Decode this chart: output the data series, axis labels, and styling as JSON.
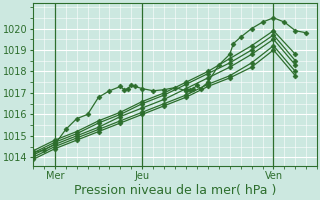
{
  "background_color": "#cce8e0",
  "plot_bg_color": "#cce8e0",
  "grid_color": "#ffffff",
  "grid_minor_color": "#ddf0ea",
  "line_color": "#2d6e2d",
  "ylabel_ticks": [
    1014,
    1015,
    1016,
    1017,
    1018,
    1019,
    1020
  ],
  "ylim": [
    1013.6,
    1021.2
  ],
  "xlim": [
    0,
    78
  ],
  "xlabel": "Pression niveau de la mer( hPa )",
  "x_ticks_pos": [
    6,
    30,
    66
  ],
  "x_tick_labels": [
    "Mer",
    "Jeu",
    "Ven"
  ],
  "vline_positions": [
    6,
    30,
    66
  ],
  "series": [
    {
      "xy": [
        0,
        1014.2,
        3,
        1014.35,
        6,
        1014.6,
        9,
        1015.3,
        12,
        1015.8,
        15,
        1016.0,
        18,
        1016.8,
        21,
        1017.1,
        24,
        1017.3,
        25,
        1017.15,
        26,
        1017.2,
        27,
        1017.35,
        28,
        1017.3,
        30,
        1017.2,
        33,
        1017.1,
        36,
        1017.15,
        39,
        1017.25,
        42,
        1017.1,
        43,
        1017.15,
        44,
        1017.2,
        45,
        1017.35,
        46,
        1017.2,
        48,
        1017.5,
        51,
        1018.3,
        54,
        1018.8,
        55,
        1019.3,
        57,
        1019.6,
        60,
        1020.0,
        63,
        1020.3,
        66,
        1020.5,
        69,
        1020.3,
        72,
        1019.9,
        75,
        1019.8
      ]
    },
    {
      "xy": [
        0,
        1014.3,
        6,
        1014.8,
        12,
        1015.2,
        18,
        1015.7,
        24,
        1016.1,
        30,
        1016.6,
        36,
        1017.0,
        42,
        1017.5,
        48,
        1018.0,
        54,
        1018.6,
        60,
        1019.2,
        66,
        1019.9,
        72,
        1018.8
      ]
    },
    {
      "xy": [
        0,
        1014.2,
        6,
        1014.7,
        12,
        1015.1,
        18,
        1015.6,
        24,
        1016.0,
        30,
        1016.5,
        36,
        1016.9,
        42,
        1017.4,
        48,
        1017.9,
        54,
        1018.4,
        60,
        1019.0,
        66,
        1019.7,
        72,
        1018.5
      ]
    },
    {
      "xy": [
        0,
        1014.1,
        6,
        1014.6,
        12,
        1015.0,
        18,
        1015.4,
        24,
        1015.9,
        30,
        1016.3,
        36,
        1016.7,
        42,
        1017.2,
        48,
        1017.7,
        54,
        1018.2,
        60,
        1018.8,
        66,
        1019.5,
        72,
        1018.3
      ]
    },
    {
      "xy": [
        0,
        1014.0,
        6,
        1014.5,
        12,
        1014.9,
        18,
        1015.3,
        24,
        1015.7,
        30,
        1016.1,
        36,
        1016.5,
        42,
        1016.9,
        48,
        1017.4,
        54,
        1017.8,
        60,
        1018.4,
        66,
        1019.2,
        72,
        1018.0
      ]
    },
    {
      "xy": [
        0,
        1013.9,
        6,
        1014.4,
        12,
        1014.8,
        18,
        1015.2,
        24,
        1015.6,
        30,
        1016.0,
        36,
        1016.4,
        42,
        1016.8,
        48,
        1017.3,
        54,
        1017.7,
        60,
        1018.2,
        66,
        1019.0,
        72,
        1017.8
      ]
    }
  ],
  "marker": "D",
  "markersize": 2.5,
  "linewidth": 0.9,
  "tick_fontsize": 7,
  "xlabel_fontsize": 9
}
